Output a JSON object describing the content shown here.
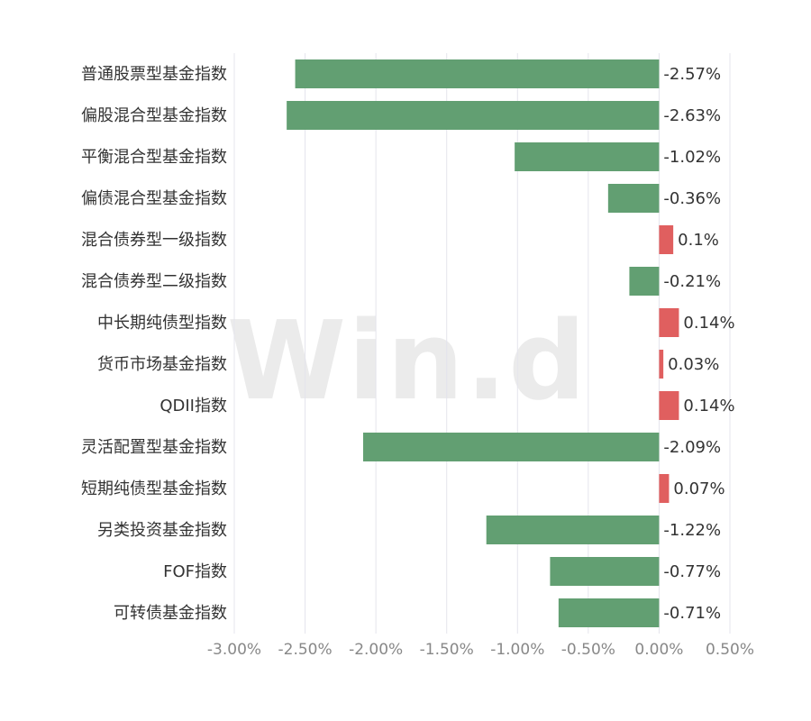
{
  "watermark": "Win.d",
  "colors": {
    "positive": "#e05f5f",
    "negative": "#629f72"
  },
  "chart_data": {
    "type": "bar",
    "orientation": "horizontal",
    "categories": [
      "普通股票型基金指数",
      "偏股混合型基金指数",
      "平衡混合型基金指数",
      "偏债混合型基金指数",
      "混合债券型一级指数",
      "混合债券型二级指数",
      "中长期纯债型指数",
      "货币市场基金指数",
      "QDII指数",
      "灵活配置型基金指数",
      "短期纯债型基金指数",
      "另类投资基金指数",
      "FOF指数",
      "可转债基金指数"
    ],
    "values": [
      -2.57,
      -2.63,
      -1.02,
      -0.36,
      0.1,
      -0.21,
      0.14,
      0.03,
      0.14,
      -2.09,
      0.07,
      -1.22,
      -0.77,
      -0.71
    ],
    "value_labels": [
      "-2.57%",
      "-2.63%",
      "-1.02%",
      "-0.36%",
      "0.1%",
      "-0.21%",
      "0.14%",
      "0.03%",
      "0.14%",
      "-2.09%",
      "0.07%",
      "-1.22%",
      "-0.77%",
      "-0.71%"
    ],
    "x_ticks": [
      -3.0,
      -2.5,
      -2.0,
      -1.5,
      -1.0,
      -0.5,
      0.0,
      0.5
    ],
    "x_tick_labels": [
      "-3.00%",
      "-2.50%",
      "-2.00%",
      "-1.50%",
      "-1.00%",
      "-0.50%",
      "0.00%",
      "0.50%"
    ],
    "xlim": [
      -3.0,
      0.5
    ],
    "grid": "vertical",
    "title": "",
    "xlabel": "",
    "ylabel": ""
  }
}
